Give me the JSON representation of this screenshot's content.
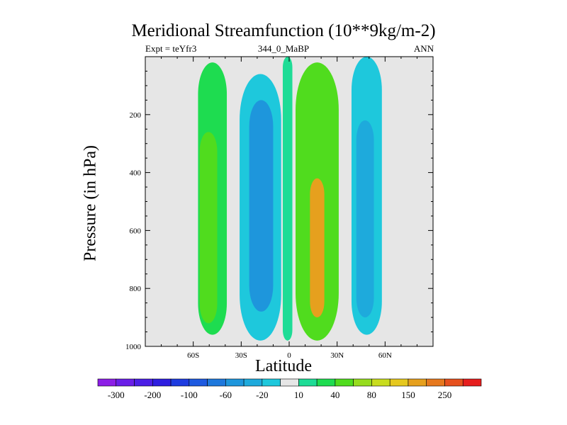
{
  "chart_data": {
    "type": "contour",
    "title": "Meridional Streamfunction (10**9kg/m-2)",
    "subtitle_left": "Expt = teYfr3",
    "subtitle_center": "344_0_MaBP",
    "subtitle_right": "ANN",
    "xlabel": "Latitude",
    "ylabel": "Pressure (in hPa)",
    "xlim": [
      -90,
      90
    ],
    "ylim": [
      1000,
      0
    ],
    "x_ticks": [
      -60,
      -30,
      0,
      30,
      60
    ],
    "x_tick_labels": [
      "60S",
      "30S",
      "0",
      "30N",
      "60N"
    ],
    "y_ticks": [
      200,
      400,
      600,
      800,
      1000
    ],
    "y_tick_labels": [
      "200",
      "400",
      "600",
      "800",
      "1000"
    ],
    "colorbar": {
      "levels": [
        -300,
        -250,
        -200,
        -150,
        -100,
        -80,
        -60,
        -40,
        -20,
        -10,
        10,
        20,
        40,
        60,
        80,
        100,
        150,
        200,
        250,
        300
      ],
      "labels": [
        "-300",
        "-200",
        "-100",
        "-60",
        "-20",
        "10",
        "40",
        "80",
        "150",
        "250"
      ],
      "colors": [
        "#8c1ee6",
        "#6a1ee8",
        "#4b1ee6",
        "#2e1ee0",
        "#1e3ce0",
        "#1e5ae0",
        "#1e78dc",
        "#1e96dc",
        "#1eaadc",
        "#1ec8dc",
        "#e6e6e6",
        "#1edc96",
        "#1edc50",
        "#50dc1e",
        "#96dc1e",
        "#c8dc1e",
        "#e6c81e",
        "#e6a01e",
        "#e6781e",
        "#e6501e",
        "#e61e1e"
      ]
    },
    "regions": [
      {
        "name": "sh-ferrel-cell",
        "level": 20,
        "center_lat": -49,
        "center_p": 600,
        "lat_range": [
          -57,
          -39
        ],
        "p_range": [
          20,
          960
        ]
      },
      {
        "name": "sh-ferrel-core",
        "level": 40,
        "center_lat": -50,
        "center_p": 600,
        "lat_range": [
          -56,
          -45
        ],
        "p_range": [
          260,
          920
        ]
      },
      {
        "name": "sh-hadley-cell",
        "level": -20,
        "center_lat": -17,
        "center_p": 520,
        "lat_range": [
          -31,
          -5
        ],
        "p_range": [
          60,
          980
        ]
      },
      {
        "name": "sh-hadley-core",
        "level": -60,
        "center_lat": -17,
        "center_p": 500,
        "lat_range": [
          -25,
          -10
        ],
        "p_range": [
          150,
          880
        ]
      },
      {
        "name": "equatorial-band",
        "level": 10,
        "center_lat": 0,
        "center_p": 500,
        "lat_range": [
          -4,
          2
        ],
        "p_range": [
          0,
          980
        ]
      },
      {
        "name": "nh-hadley-cell",
        "level": 40,
        "center_lat": 17,
        "center_p": 560,
        "lat_range": [
          4,
          31
        ],
        "p_range": [
          20,
          980
        ]
      },
      {
        "name": "nh-hadley-core",
        "level": 150,
        "center_lat": 17,
        "center_p": 720,
        "lat_range": [
          13,
          22
        ],
        "p_range": [
          420,
          900
        ]
      },
      {
        "name": "nh-ferrel-cell",
        "level": -20,
        "center_lat": 48,
        "center_p": 500,
        "lat_range": [
          39,
          58
        ],
        "p_range": [
          0,
          960
        ]
      },
      {
        "name": "nh-ferrel-core",
        "level": -40,
        "center_lat": 47,
        "center_p": 560,
        "lat_range": [
          42,
          53
        ],
        "p_range": [
          220,
          900
        ]
      }
    ]
  }
}
